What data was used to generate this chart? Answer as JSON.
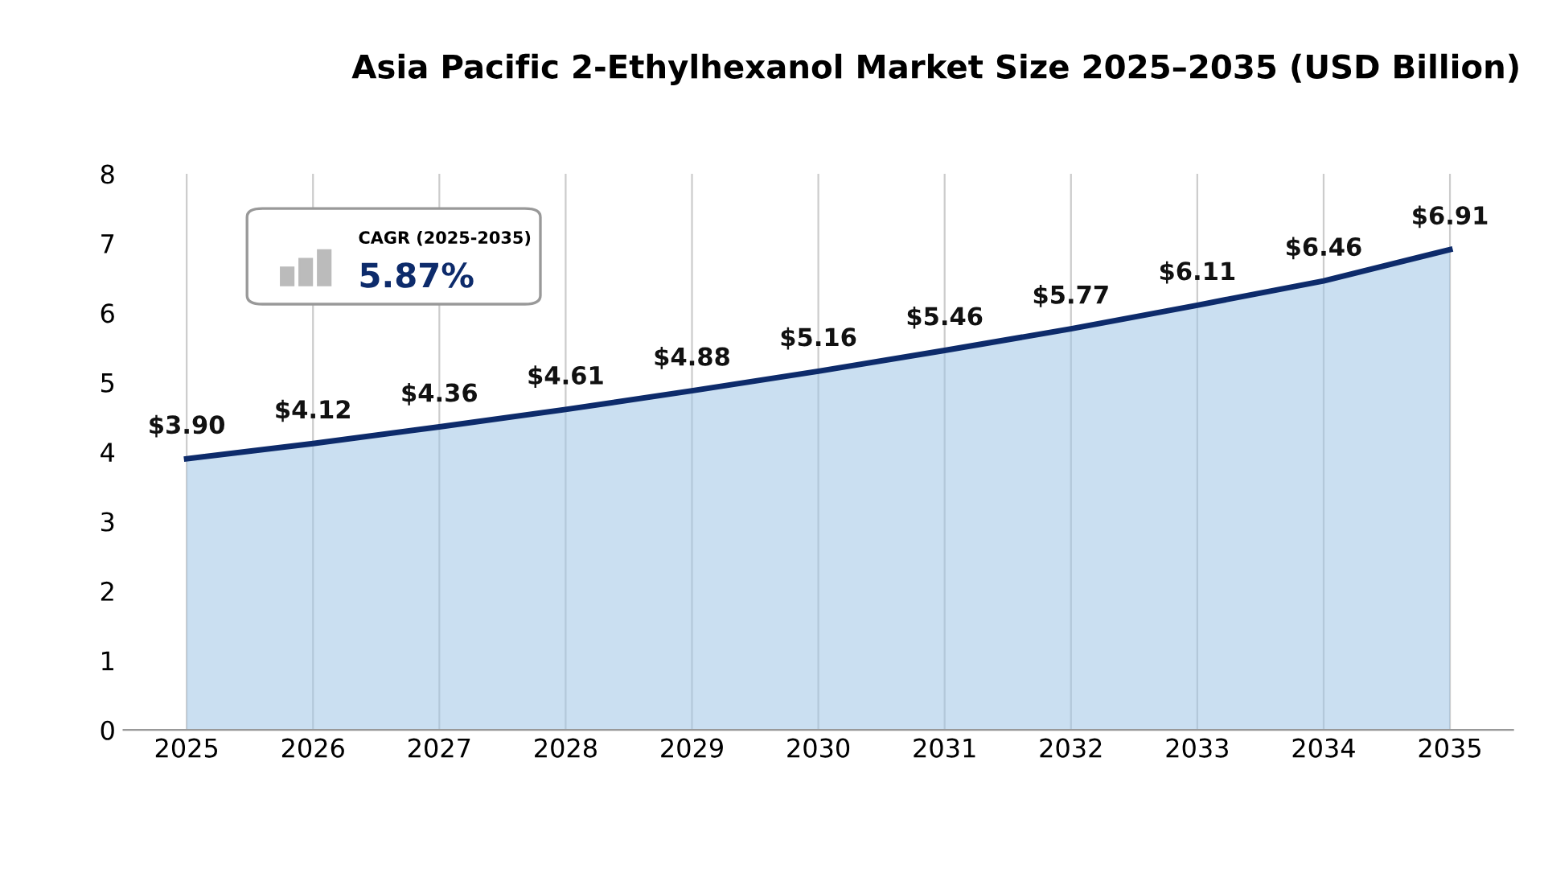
{
  "chart_data": {
    "type": "area",
    "title": "Asia Pacific 2-Ethylhexanol Market Size 2025–2035 (USD Billion)",
    "categories": [
      "2025",
      "2026",
      "2027",
      "2028",
      "2029",
      "2030",
      "2031",
      "2032",
      "2033",
      "2034",
      "2035"
    ],
    "series": [
      {
        "color": "#0d2b6b",
        "values": [
          3.9,
          4.12,
          4.36,
          4.61,
          4.88,
          5.16,
          5.46,
          5.77,
          6.11,
          6.46,
          6.91
        ],
        "value_labels": [
          "$3.90",
          "$4.12",
          "$4.36",
          "$4.61",
          "$4.88",
          "$5.16",
          "$5.46",
          "$5.77",
          "$6.11",
          "$6.46",
          "$6.91"
        ]
      }
    ],
    "ylim": [
      0,
      8
    ],
    "yticks": [
      0,
      1,
      2,
      3,
      4,
      5,
      6,
      7,
      8
    ],
    "grid": "x",
    "annotations": [
      "CAGR (2025-2035)",
      "5.87%"
    ]
  }
}
